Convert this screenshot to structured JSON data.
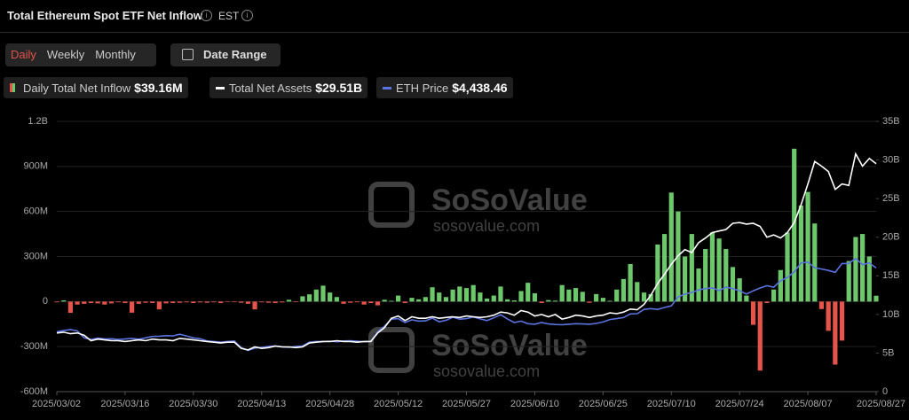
{
  "header": {
    "title": "Total Ethereum Spot ETF Net Inflow",
    "timezone": "EST"
  },
  "controls": {
    "tabs": [
      "Daily",
      "Weekly",
      "Monthly"
    ],
    "active_tab": 0,
    "date_range": "Date Range"
  },
  "watermark": {
    "brand": "SoSoValue",
    "site": "sosovalue.com"
  },
  "chart_data": {
    "type": "bar-line",
    "categories": [
      "2025/03/02",
      null,
      null,
      null,
      null,
      null,
      null,
      null,
      null,
      null,
      "2025/03/16",
      null,
      null,
      null,
      null,
      null,
      null,
      null,
      null,
      null,
      "2025/03/30",
      null,
      null,
      null,
      null,
      null,
      null,
      null,
      null,
      null,
      "2025/04/13",
      null,
      null,
      null,
      null,
      null,
      null,
      null,
      null,
      null,
      "2025/04/28",
      null,
      null,
      null,
      null,
      null,
      null,
      null,
      null,
      null,
      "2025/05/12",
      null,
      null,
      null,
      null,
      null,
      null,
      null,
      null,
      null,
      "2025/05/27",
      null,
      null,
      null,
      null,
      null,
      null,
      null,
      null,
      null,
      "2025/06/10",
      null,
      null,
      null,
      null,
      null,
      null,
      null,
      null,
      null,
      "2025/06/25",
      null,
      null,
      null,
      null,
      null,
      null,
      null,
      null,
      null,
      "2025/07/10",
      null,
      null,
      null,
      null,
      null,
      null,
      null,
      null,
      null,
      "2025/07/24",
      null,
      null,
      null,
      null,
      null,
      null,
      null,
      null,
      null,
      "2025/08/07",
      null,
      null,
      null,
      null,
      null,
      null,
      null,
      null,
      null,
      "2025/08/27"
    ],
    "series": [
      {
        "name": "Daily Total Net Inflow",
        "legend_value": "$39.16M",
        "positive_color": "#6cc86a",
        "negative_color": "#e5544a",
        "values": [
          -5,
          8,
          -75,
          -20,
          -15,
          -10,
          -12,
          -20,
          -12,
          -5,
          -10,
          -74,
          -15,
          -8,
          -10,
          -52,
          -12,
          -10,
          -8,
          -5,
          -10,
          -6,
          -8,
          -5,
          -10,
          -3,
          -4,
          -8,
          -15,
          -52,
          -5,
          -8,
          -10,
          -6,
          12,
          -4,
          35,
          48,
          80,
          106,
          60,
          30,
          -15,
          -8,
          -5,
          -20,
          -10,
          -25,
          12,
          5,
          40,
          -10,
          25,
          15,
          30,
          95,
          60,
          30,
          80,
          100,
          90,
          110,
          60,
          20,
          40,
          100,
          15,
          8,
          70,
          125,
          55,
          -10,
          10,
          6,
          110,
          80,
          90,
          65,
          -8,
          50,
          25,
          5,
          80,
          150,
          250,
          130,
          60,
          50,
          380,
          450,
          726,
          600,
          300,
          450,
          220,
          350,
          460,
          420,
          350,
          230,
          155,
          40,
          -155,
          -460,
          -10,
          80,
          210,
          460,
          1018,
          640,
          730,
          520,
          -50,
          -195,
          -420,
          -260,
          270,
          430,
          450,
          300,
          39.16
        ]
      },
      {
        "name": "Total Net Assets",
        "legend_value": "$29.51B",
        "color": "#ffffff",
        "axis": "y2",
        "values": [
          7.6,
          7.7,
          7.5,
          7.6,
          7.3,
          6.6,
          6.8,
          6.7,
          6.6,
          6.6,
          6.5,
          6.6,
          6.7,
          6.6,
          6.8,
          6.7,
          6.7,
          6.6,
          6.9,
          6.8,
          6.7,
          6.6,
          6.5,
          6.4,
          6.3,
          6.4,
          6.4,
          5.6,
          5.4,
          5.8,
          5.6,
          5.7,
          5.9,
          5.8,
          5.8,
          5.7,
          5.8,
          6.3,
          6.4,
          6.5,
          6.5,
          6.6,
          6.5,
          6.5,
          6.4,
          6.5,
          6.5,
          7.6,
          8.3,
          9.5,
          9.8,
          9.2,
          9.7,
          9.5,
          9.5,
          9.7,
          9.5,
          9.6,
          9.7,
          9.6,
          9.8,
          9.7,
          9.6,
          9.7,
          9.9,
          10.3,
          10.2,
          9.9,
          10.5,
          10.3,
          9.8,
          10.0,
          9.7,
          10.0,
          9.4,
          9.6,
          9.9,
          9.8,
          9.6,
          9.8,
          9.9,
          10.2,
          10.1,
          10.3,
          10.7,
          10.6,
          11.3,
          12.5,
          14.0,
          15.2,
          16.5,
          17.6,
          18.4,
          18.0,
          19.3,
          19.9,
          20.6,
          20.8,
          21.0,
          21.8,
          21.9,
          21.7,
          21.8,
          21.4,
          20.0,
          20.3,
          19.9,
          20.6,
          21.9,
          24.2,
          26.9,
          29.8,
          29.2,
          28.5,
          26.2,
          26.9,
          26.7,
          30.8,
          29.2,
          30.2,
          29.51
        ]
      },
      {
        "name": "ETH Price",
        "legend_value": "$4,438.46",
        "color": "#5b73e0",
        "axis": "y3",
        "values": [
          2150,
          2190,
          2230,
          2180,
          1930,
          1870,
          1920,
          1890,
          1900,
          1870,
          1890,
          1910,
          1880,
          1930,
          1980,
          1990,
          2010,
          2000,
          2060,
          2000,
          1930,
          1900,
          1820,
          1800,
          1780,
          1800,
          1820,
          1580,
          1480,
          1560,
          1590,
          1620,
          1640,
          1610,
          1590,
          1620,
          1640,
          1780,
          1800,
          1800,
          1810,
          1790,
          1820,
          1830,
          1810,
          1790,
          1810,
          2150,
          2350,
          2600,
          2620,
          2480,
          2580,
          2530,
          2540,
          2640,
          2510,
          2560,
          2670,
          2600,
          2620,
          2680,
          2610,
          2550,
          2650,
          2760,
          2610,
          2480,
          2530,
          2440,
          2420,
          2480,
          2430,
          2410,
          2400,
          2420,
          2440,
          2430,
          2420,
          2450,
          2500,
          2590,
          2620,
          2660,
          2790,
          2800,
          2950,
          2980,
          2950,
          3020,
          3080,
          3400,
          3500,
          3560,
          3650,
          3700,
          3720,
          3630,
          3750,
          3700,
          3620,
          3500,
          3620,
          3720,
          3800,
          3750,
          3980,
          4100,
          4300,
          4620,
          4650,
          4450,
          4400,
          4350,
          4280,
          4600,
          4600,
          4780,
          4560,
          4620,
          4438.46
        ]
      }
    ],
    "ylim": [
      -600,
      1200
    ],
    "yticks": [
      {
        "value": -600,
        "label": "-600M"
      },
      {
        "value": -300,
        "label": "-300M"
      },
      0,
      {
        "value": 300,
        "label": "300M"
      },
      {
        "value": 600,
        "label": "600M"
      },
      {
        "value": 900,
        "label": "900M"
      },
      {
        "value": 1200,
        "label": "1.2B"
      }
    ],
    "y2lim": [
      0,
      35
    ],
    "y2ticks": [
      0,
      {
        "value": 5,
        "label": "5B"
      },
      {
        "value": 10,
        "label": "10B"
      },
      {
        "value": 15,
        "label": "15B"
      },
      {
        "value": 20,
        "label": "20B"
      },
      {
        "value": 25,
        "label": "25B"
      },
      {
        "value": 30,
        "label": "30B"
      },
      {
        "value": 35,
        "label": "35B"
      }
    ],
    "y3lim": [
      0,
      9700
    ],
    "grid": true
  }
}
